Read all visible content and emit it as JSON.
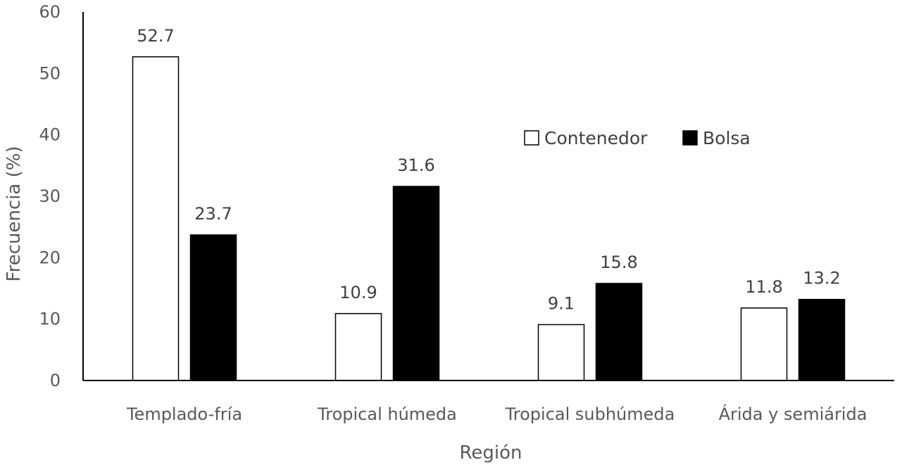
{
  "chart_data": {
    "type": "bar",
    "title": "",
    "xlabel": "Región",
    "ylabel": "Frecuencia (%)",
    "ylim": [
      0,
      60
    ],
    "yticks": [
      0,
      10,
      20,
      30,
      40,
      50,
      60
    ],
    "grid": false,
    "legend_position": "right",
    "categories": [
      "Templado-fría",
      "Tropical húmeda",
      "Tropical subhúmeda",
      "Árida y semiárida"
    ],
    "series": [
      {
        "name": "Contenedor",
        "values": [
          52.7,
          10.9,
          9.1,
          11.8
        ],
        "color": "#ffffff",
        "stroke": "#000000"
      },
      {
        "name": "Bolsa",
        "values": [
          23.7,
          31.6,
          15.8,
          13.2
        ],
        "color": "#000000",
        "stroke": "#000000"
      }
    ]
  }
}
